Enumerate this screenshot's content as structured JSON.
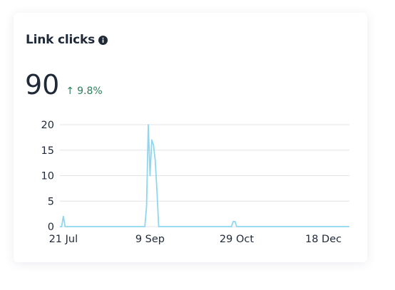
{
  "widget": {
    "title": "Link clicks",
    "info_icon": "info-icon",
    "total": "90",
    "change_arrow": "↑",
    "change_pct": "9.8%",
    "colors": {
      "line": "#8fd6f0",
      "positive": "#2e7d5b",
      "text": "#1f2937",
      "grid": "#e2e4e8"
    }
  },
  "chart_data": {
    "type": "line",
    "title": "",
    "xlabel": "",
    "ylabel": "",
    "ylim": [
      0,
      20
    ],
    "y_ticks": [
      0,
      5,
      10,
      15,
      20
    ],
    "x_tick_labels": [
      "21 Jul",
      "9 Sep",
      "29 Oct",
      "18 Dec"
    ],
    "grid": true,
    "series": [
      {
        "x": [
          "19 Jul",
          "20 Jul",
          "21 Jul",
          "22 Jul",
          "23 Jul",
          "6 Sep",
          "7 Sep",
          "8 Sep",
          "9 Sep",
          "10 Sep",
          "11 Sep",
          "12 Sep",
          "13 Sep",
          "14 Sep",
          "15 Sep",
          "16 Sep",
          "17 Sep",
          "26 Oct",
          "27 Oct",
          "28 Oct",
          "29 Oct",
          "30 Oct",
          "2 Jan"
        ],
        "values": [
          0,
          0,
          2,
          0,
          0,
          0,
          4,
          20,
          10,
          17,
          16,
          13,
          7,
          0,
          0,
          0,
          0,
          0,
          1,
          1,
          0,
          0,
          0
        ]
      }
    ]
  }
}
